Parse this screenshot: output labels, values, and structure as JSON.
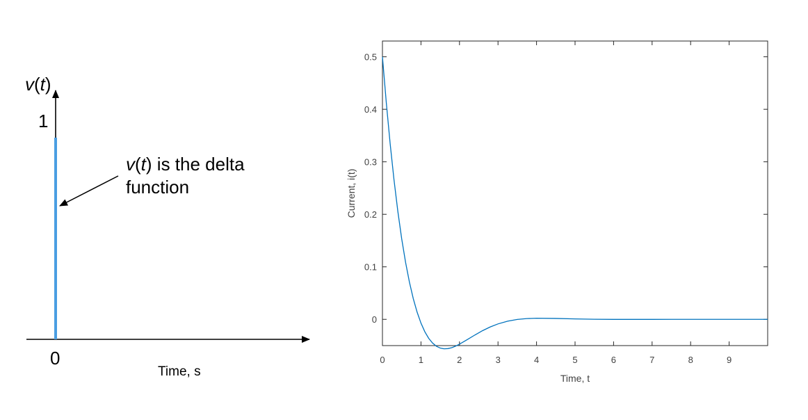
{
  "chart_data": [
    {
      "type": "line",
      "title": "",
      "ylabel_main": "v",
      "ylabel_arg": "t",
      "xlabel": "Time, s",
      "x_tick_labels": [
        "0"
      ],
      "y_tick_labels": [
        "1"
      ],
      "series": [
        {
          "x": [
            0,
            0
          ],
          "y": [
            0,
            1
          ],
          "color": "#4a9ee2"
        }
      ],
      "annotation": {
        "main": "v",
        "arg": "t",
        "line1_rest": " is the delta",
        "line2": "function"
      }
    },
    {
      "type": "line",
      "title": "",
      "xlabel": "Time, t",
      "ylabel": "Current, i(t)",
      "xlim": [
        0,
        10
      ],
      "ylim": [
        -0.05,
        0.53
      ],
      "x_ticks": [
        0,
        1,
        2,
        3,
        4,
        5,
        6,
        7,
        8,
        9
      ],
      "y_ticks": [
        0,
        0.1,
        0.2,
        0.3,
        0.4,
        0.5
      ],
      "x_tick_labels": [
        "0",
        "1",
        "2",
        "3",
        "4",
        "5",
        "6",
        "7",
        "8",
        "9"
      ],
      "y_tick_labels": [
        "0",
        "0.1",
        "0.2",
        "0.3",
        "0.4",
        "0.5"
      ],
      "grid": false,
      "series": [
        {
          "color": "#0072bd",
          "x": [
            0,
            0.1,
            0.2,
            0.3,
            0.4,
            0.5,
            0.6,
            0.7,
            0.8,
            0.9,
            1.0,
            1.1,
            1.2,
            1.3,
            1.4,
            1.5,
            1.6,
            1.7,
            1.8,
            1.9,
            2.0,
            2.2,
            2.4,
            2.6,
            2.8,
            3.0,
            3.25,
            3.5,
            3.75,
            4.0,
            4.5,
            5.0,
            5.5,
            6.0,
            6.5,
            7.0,
            7.5,
            8.0,
            8.5,
            9.0,
            9.5,
            10.0
          ],
          "y": [
            0.5,
            0.4126,
            0.3346,
            0.2657,
            0.2054,
            0.1533,
            0.1087,
            0.071,
            0.0395,
            0.0137,
            -0.0072,
            -0.0236,
            -0.0361,
            -0.0451,
            -0.0512,
            -0.0547,
            -0.0561,
            -0.0557,
            -0.0539,
            -0.051,
            -0.0473,
            -0.0387,
            -0.0298,
            -0.0215,
            -0.0144,
            -0.0087,
            -0.0035,
            -0.0002,
            0.0015,
            0.0021,
            0.0017,
            0.0008,
            0.0002,
            -0.0001,
            -0.0001,
            -0.0001,
            0,
            0,
            0,
            0,
            0,
            0
          ]
        }
      ]
    }
  ]
}
